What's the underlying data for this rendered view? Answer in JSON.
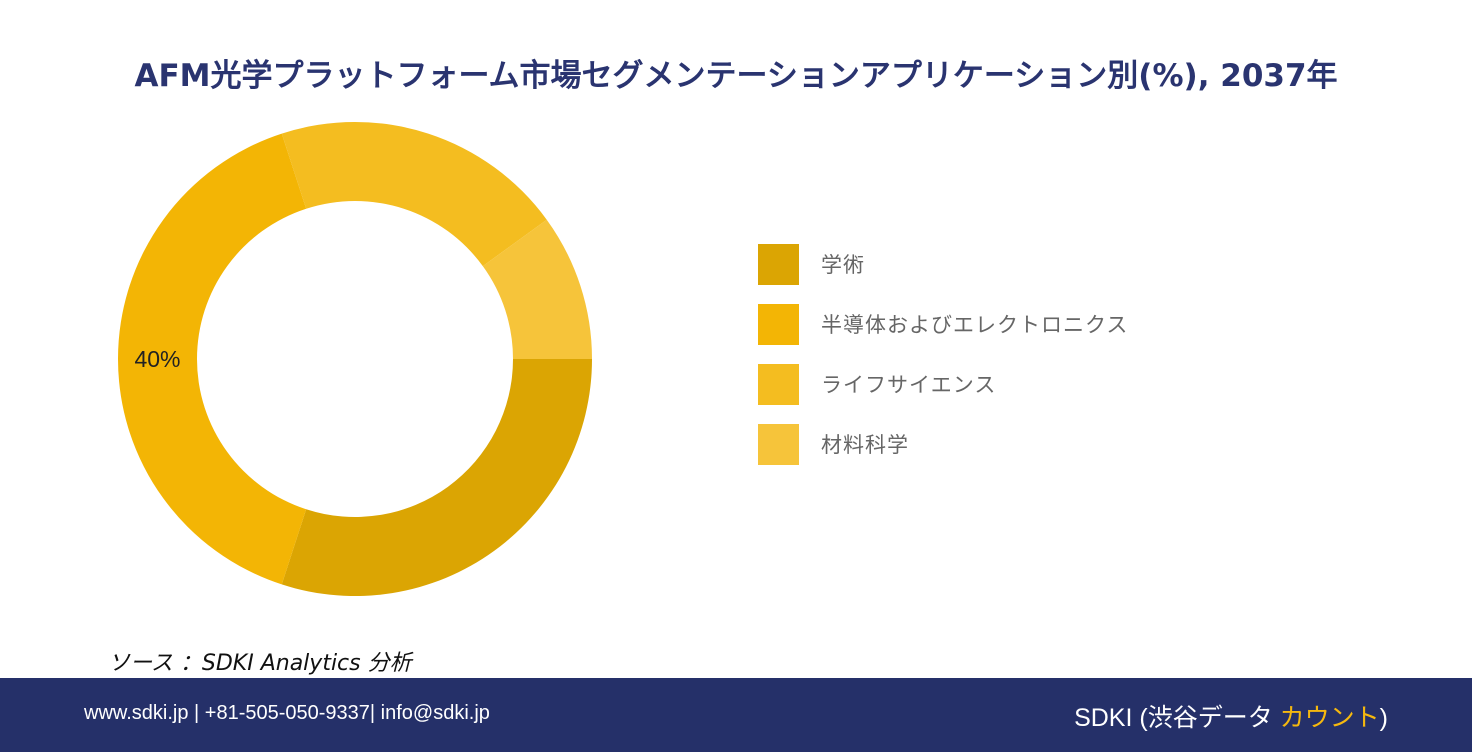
{
  "title": "AFM光学プラットフォーム市場セグメンテーションアプリケーション別(%), 2037年",
  "chart_data": {
    "type": "pie",
    "variant": "donut",
    "categories": [
      "学術",
      "半導体およびエレクトロニクス",
      "ライフサイエンス",
      "材料科学"
    ],
    "values": [
      30,
      40,
      20,
      10
    ],
    "data_labels": [
      "",
      "40%",
      "",
      ""
    ],
    "colors": [
      "#dba503",
      "#f3b505",
      "#f4bd20",
      "#f6c43a"
    ],
    "legend_position": "right"
  },
  "source": "ソース ：SDKI Analytics 分析",
  "footer": {
    "contact": "www.sdki.jp | +81-505-050-9337| info@sdki.jp",
    "brand_prefix": "SDKI (渋谷データ ",
    "brand_accent": "カウント",
    "brand_suffix": ")"
  }
}
